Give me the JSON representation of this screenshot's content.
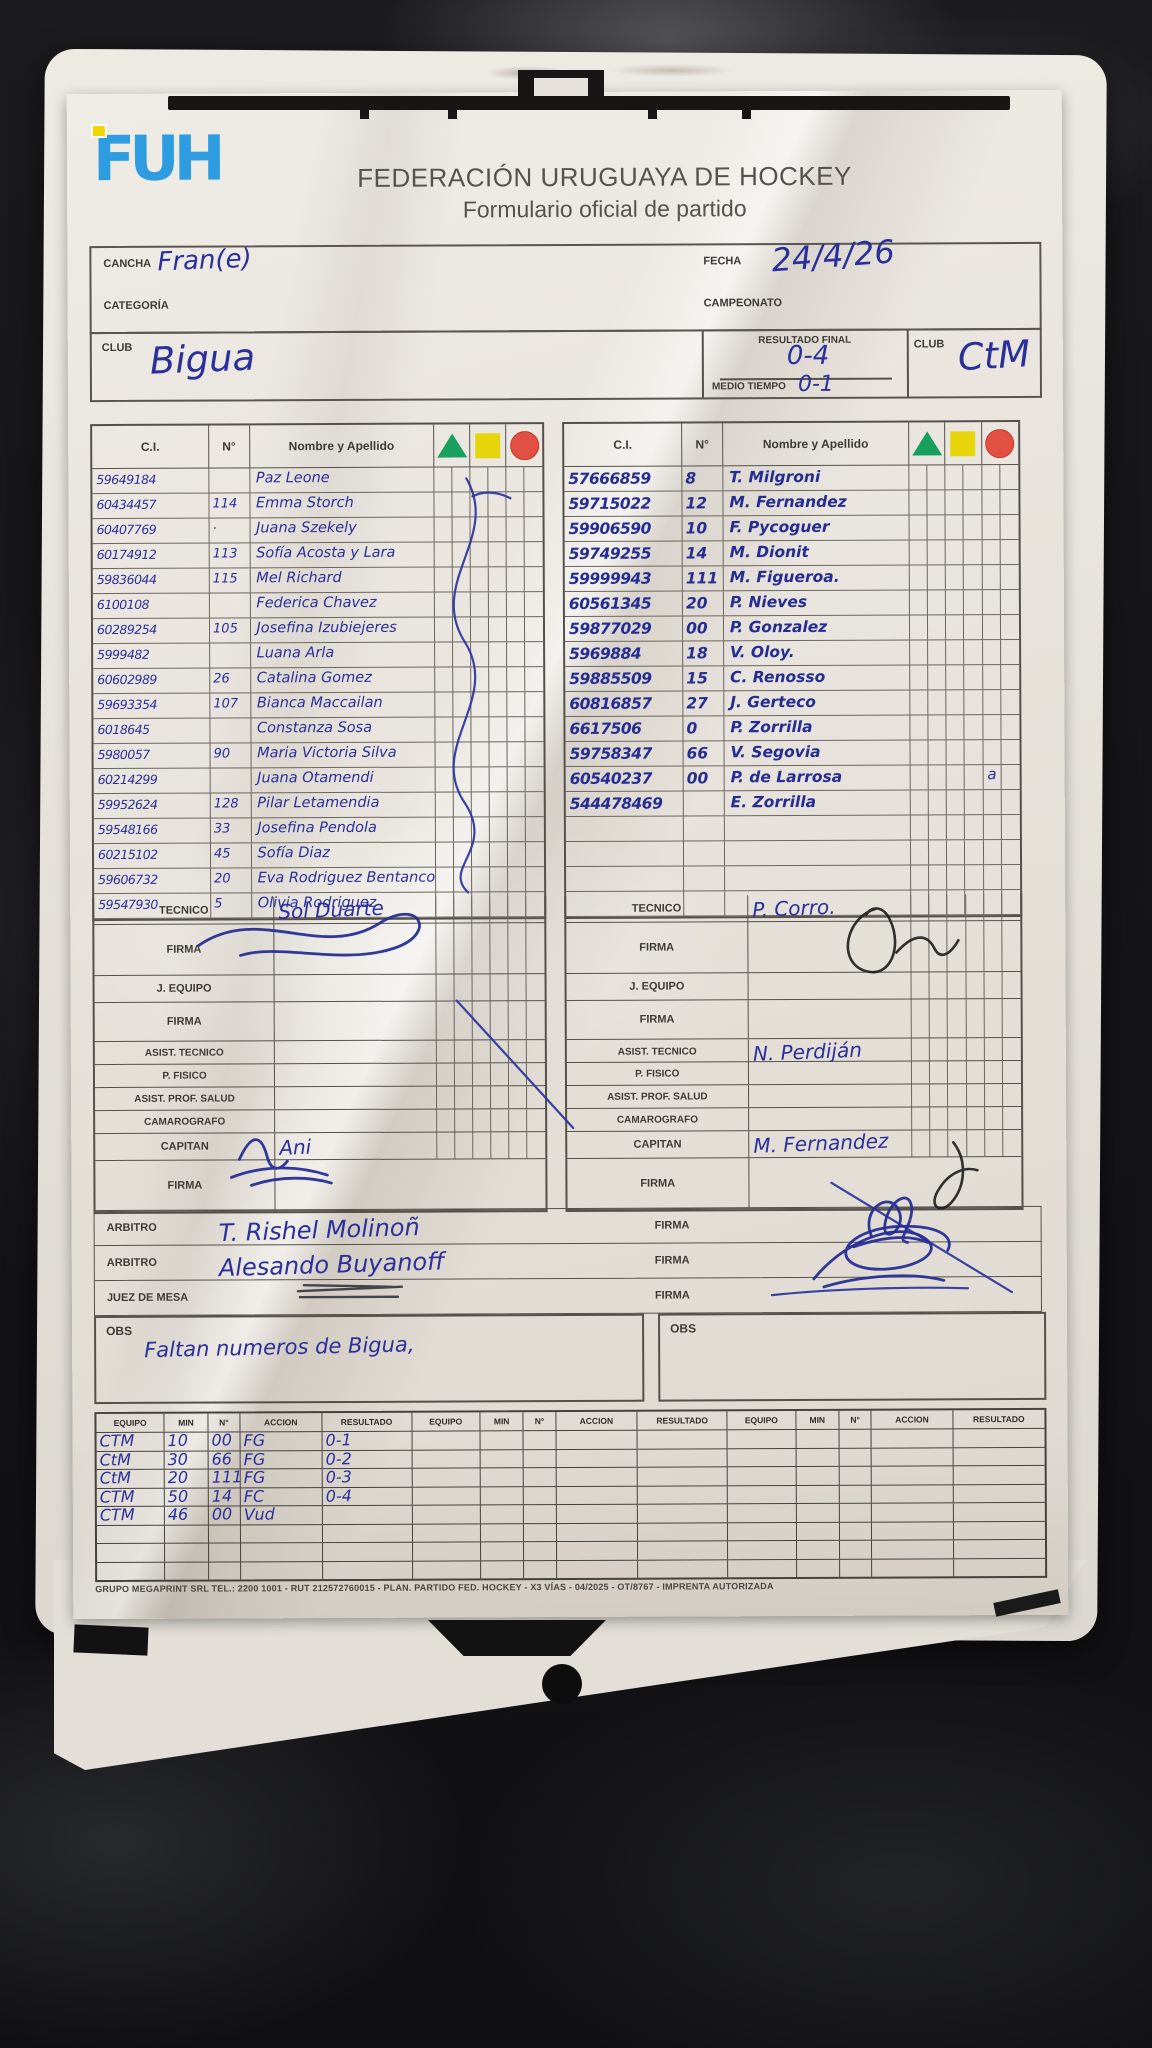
{
  "header": {
    "logo_text": "FUH",
    "org": "FEDERACIÓN URUGUAYA DE HOCKEY",
    "subtitle": "Formulario oficial de partido"
  },
  "info": {
    "cancha_label": "CANCHA",
    "cancha": "Fran(e)",
    "fecha_label": "FECHA",
    "fecha": "24/4/26",
    "categoria_label": "CATEGORÍA",
    "categoria": "",
    "campeonato_label": "CAMPEONATO",
    "campeonato": ""
  },
  "clubs": {
    "left_label": "CLUB",
    "left_name": "Bigua",
    "right_label": "CLUB",
    "right_name": "CtM"
  },
  "score": {
    "final_label": "RESULTADO FINAL",
    "final": "0-4",
    "half_label": "MEDIO TIEMPO",
    "half": "0-1"
  },
  "roster_headers": {
    "ci": "C.I.",
    "num": "N°",
    "name": "Nombre y Apellido"
  },
  "card_colors": {
    "green": "#17a05e",
    "yellow": "#e6d50b",
    "red": "#e25043"
  },
  "left_roster": [
    {
      "ci": "59649184",
      "num": "",
      "name": "Paz Leone"
    },
    {
      "ci": "60434457",
      "num": "114",
      "name": "Emma Storch"
    },
    {
      "ci": "60407769",
      "num": "·",
      "name": "Juana Szekely"
    },
    {
      "ci": "60174912",
      "num": "113",
      "name": "Sofía Acosta y Lara"
    },
    {
      "ci": "59836044",
      "num": "115",
      "name": "Mel Richard"
    },
    {
      "ci": "6100108",
      "num": "",
      "name": "Federica Chavez"
    },
    {
      "ci": "60289254",
      "num": "105",
      "name": "Josefina Izubiejeres"
    },
    {
      "ci": "5999482",
      "num": "",
      "name": "Luana Arla"
    },
    {
      "ci": "60602989",
      "num": "26",
      "name": "Catalina Gomez"
    },
    {
      "ci": "59693354",
      "num": "107",
      "name": "Bianca Maccailan"
    },
    {
      "ci": "6018645",
      "num": "",
      "name": "Constanza Sosa"
    },
    {
      "ci": "5980057",
      "num": "90",
      "name": "Maria Victoria Silva"
    },
    {
      "ci": "60214299",
      "num": "",
      "name": "Juana Otamendi"
    },
    {
      "ci": "59952624",
      "num": "128",
      "name": "Pilar Letamendia"
    },
    {
      "ci": "59548166",
      "num": "33",
      "name": "Josefina Pendola"
    },
    {
      "ci": "60215102",
      "num": "45",
      "name": "Sofía Diaz"
    },
    {
      "ci": "59606732",
      "num": "20",
      "name": "Eva Rodriguez Bentancor"
    },
    {
      "ci": "59547930",
      "num": "5",
      "name": "Olivia Rodriguez"
    }
  ],
  "right_roster": [
    {
      "ci": "57666859",
      "num": "8",
      "name": "T. Milgroni"
    },
    {
      "ci": "59715022",
      "num": "12",
      "name": "M. Fernandez"
    },
    {
      "ci": "59906590",
      "num": "10",
      "name": "F. Pycoguer"
    },
    {
      "ci": "59749255",
      "num": "14",
      "name": "M. Dionit"
    },
    {
      "ci": "59999943",
      "num": "111",
      "name": "M. Figueroa."
    },
    {
      "ci": "60561345",
      "num": "20",
      "name": "P. Nieves"
    },
    {
      "ci": "59877029",
      "num": "00",
      "name": "P. Gonzalez"
    },
    {
      "ci": "5969884",
      "num": "18",
      "name": "V. Oloy."
    },
    {
      "ci": "59885509",
      "num": "15",
      "name": "C. Renosso"
    },
    {
      "ci": "60816857",
      "num": "27",
      "name": "J. Gerteco"
    },
    {
      "ci": "6617506",
      "num": "0",
      "name": "P. Zorrilla"
    },
    {
      "ci": "59758347",
      "num": "66",
      "name": "V. Segovia"
    },
    {
      "ci": "60540237",
      "num": "00",
      "name": "P. de Larrosa",
      "extra": "a"
    },
    {
      "ci": "544478469",
      "num": "",
      "name": "E. Zorrilla"
    },
    {
      "ci": "",
      "num": "",
      "name": ""
    },
    {
      "ci": "",
      "num": "",
      "name": ""
    },
    {
      "ci": "",
      "num": "",
      "name": ""
    },
    {
      "ci": "",
      "num": "",
      "name": ""
    }
  ],
  "staff_labels": {
    "tecnico": "TECNICO",
    "firma": "FIRMA",
    "j_equipo": "J. EQUIPO",
    "asist_tecnico": "ASIST. TECNICO",
    "p_fisico": "P. FISICO",
    "asist_prof_salud": "ASIST. PROF. SALUD",
    "camarografo": "CAMAROGRAFO",
    "capitan": "CAPITAN"
  },
  "left_staff": {
    "tecnico": "Sol Duarte",
    "capitan": "Ani"
  },
  "right_staff": {
    "tecnico": "P. Corro.",
    "asist_tecnico": "N. Perdiján",
    "capitan": "M. Fernandez"
  },
  "officials": {
    "firma_label": "FIRMA",
    "rows": [
      {
        "label": "ARBITRO",
        "name": "T. Rishel Molinoñ"
      },
      {
        "label": "ARBITRO",
        "name": "Alesando Buyanoff"
      },
      {
        "label": "JUEZ DE MESA",
        "name": ""
      }
    ]
  },
  "obs": {
    "label": "OBS",
    "left_text": "Faltan numeros de Bigua,",
    "right_text": ""
  },
  "actions_table": {
    "headers": [
      "EQUIPO",
      "MIN",
      "N°",
      "ACCION",
      "RESULTADO"
    ],
    "rows": [
      [
        "CTM",
        "10",
        "00",
        "FG",
        "0-1"
      ],
      [
        "CtM",
        "30",
        "66",
        "FG",
        "0-2"
      ],
      [
        "CtM",
        "20",
        "111",
        "FG",
        "0-3"
      ],
      [
        "CTM",
        "50",
        "14",
        "FC",
        "0-4"
      ],
      [
        "CTM",
        "46",
        "00",
        "Vud",
        ""
      ]
    ]
  },
  "footer": {
    "text": "GRUPO MEGAPRINT SRL TEL.: 2200 1001 - RUT 212572760015 - PLAN. PARTIDO FED. HOCKEY - X3 VÍAS - 04/2025 - OT/8767 - IMPRENTA AUTORIZADA"
  }
}
